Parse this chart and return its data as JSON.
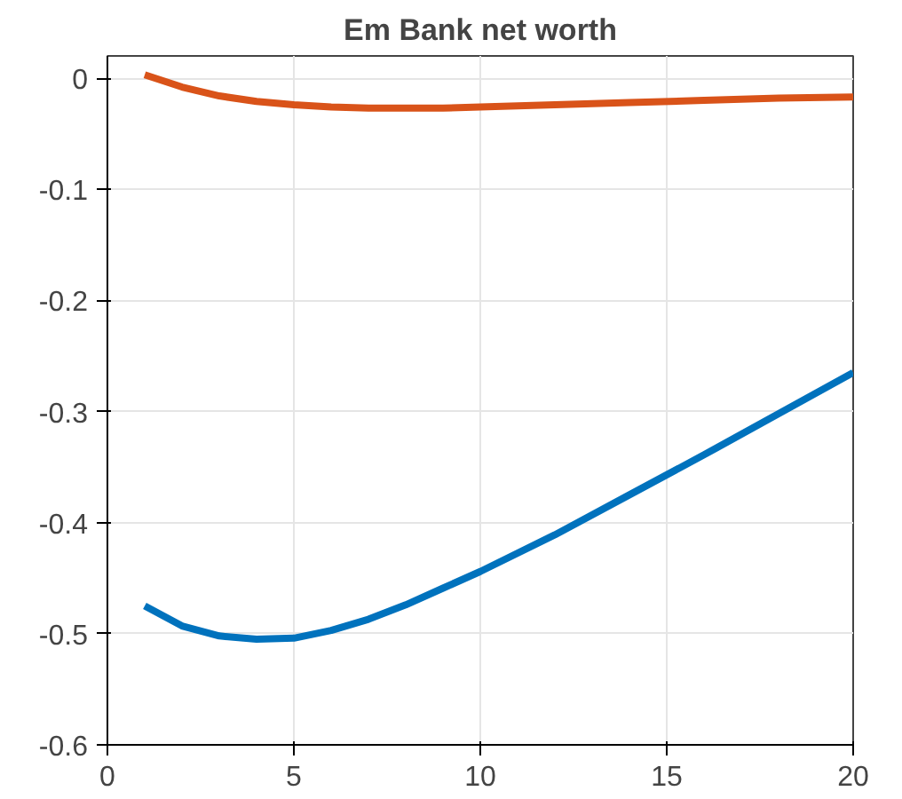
{
  "chart_data": {
    "type": "line",
    "title": "Em Bank net worth",
    "xlim": [
      0,
      20
    ],
    "xticks": [
      0,
      5,
      10,
      15,
      20
    ],
    "ylim": [
      -0.6,
      0.02
    ],
    "yticks": [
      -0.6,
      -0.5,
      -0.4,
      -0.3,
      -0.2,
      -0.1,
      0
    ],
    "grid": true,
    "line_style": "solid",
    "x": [
      1,
      2,
      3,
      4,
      5,
      6,
      7,
      8,
      9,
      10,
      12,
      14,
      16,
      18,
      20
    ],
    "series": [
      {
        "color": "#d95319",
        "values": [
          0.003,
          -0.008,
          -0.016,
          -0.021,
          -0.024,
          -0.026,
          -0.027,
          -0.027,
          -0.027,
          -0.026,
          -0.024,
          -0.022,
          -0.02,
          -0.018,
          -0.017
        ]
      },
      {
        "color": "#0072bd",
        "values": [
          -0.475,
          -0.493,
          -0.502,
          -0.505,
          -0.504,
          -0.497,
          -0.487,
          -0.474,
          -0.459,
          -0.444,
          -0.411,
          -0.375,
          -0.339,
          -0.302,
          -0.265
        ]
      }
    ]
  }
}
